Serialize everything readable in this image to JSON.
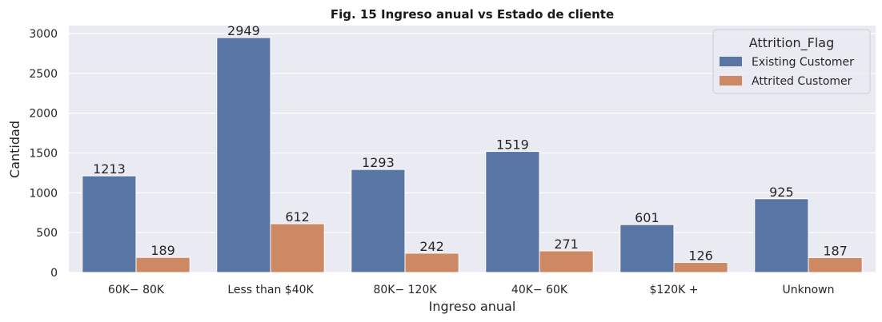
{
  "chart_data": {
    "type": "bar",
    "title": "Fig. 15 Ingreso anual vs Estado de cliente",
    "xlabel": "Ingreso anual",
    "ylabel": "Cantidad",
    "categories": [
      "$60K - $80K",
      "Less than $40K",
      "$80K - $120K",
      "$40K - $60K",
      "$120K +",
      "Unknown"
    ],
    "tick_labels": [
      "60K− 80K",
      "Less than $40K",
      "80K− 120K",
      "40K− 60K",
      "$120K +",
      "Unknown"
    ],
    "ylim": [
      0,
      3100
    ],
    "yticks": [
      0,
      500,
      1000,
      1500,
      2000,
      2500,
      3000
    ],
    "grid": true,
    "legend": {
      "title": "Attrition_Flag",
      "placement": "top-right"
    },
    "series": [
      {
        "name": "Existing Customer",
        "color": "#5975a4",
        "values": [
          1213,
          2949,
          1293,
          1519,
          601,
          925
        ]
      },
      {
        "name": "Attrited Customer",
        "color": "#cc8963",
        "values": [
          189,
          612,
          242,
          271,
          126,
          187
        ]
      }
    ],
    "background_color": "#eaeaf2"
  }
}
